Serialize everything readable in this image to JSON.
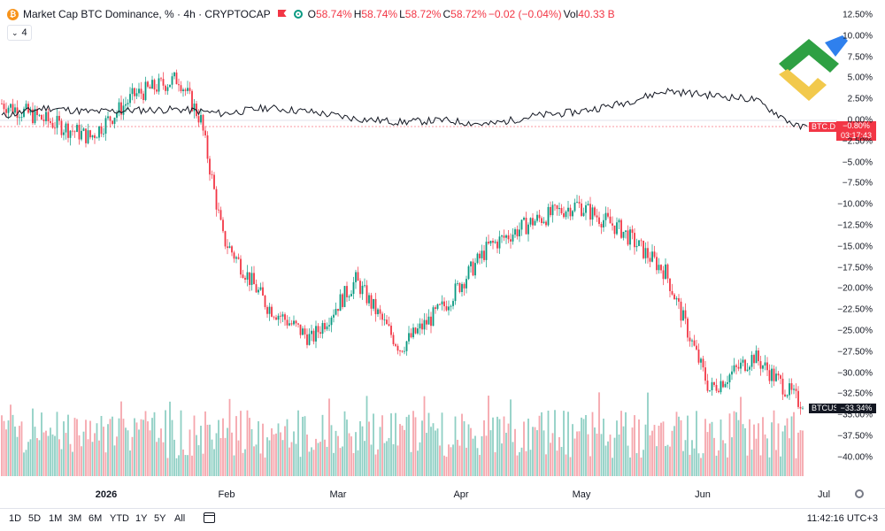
{
  "header": {
    "coin_glyph": "₿",
    "title": "Market Cap BTC Dominance, % · 4h · CRYPTOCAP",
    "ohlc": [
      {
        "label": "O",
        "value": "58.74%"
      },
      {
        "label": "H",
        "value": "58.74%"
      },
      {
        "label": "L",
        "value": "58.72%"
      },
      {
        "label": "C",
        "value": "58.72%"
      }
    ],
    "change": "−0.02 (−0.04%)",
    "vol_label": "Vol",
    "vol_value": "40.33 B"
  },
  "indicator": {
    "label": "4",
    "icon": "chevron-down-icon"
  },
  "price_axis": [
    "12.50%",
    "10.00%",
    "7.50%",
    "5.00%",
    "2.50%",
    "0.00%",
    "−2.50%",
    "−5.00%",
    "−7.50%",
    "−10.00%",
    "−12.50%",
    "−15.00%",
    "−17.50%",
    "−20.00%",
    "−22.50%",
    "−25.00%",
    "−27.50%",
    "−30.00%",
    "−32.50%",
    "−35.00%",
    "−37.50%",
    "−40.00%"
  ],
  "series_tags": {
    "btcd": {
      "name": "BTC.D",
      "value": "−0.80%",
      "countdown": "03:17:43"
    },
    "btcusd": {
      "name": "BTCUSD",
      "value": "−33.34%"
    }
  },
  "time_axis": [
    {
      "label": "2026",
      "bold": true
    },
    {
      "label": "Feb",
      "bold": false
    },
    {
      "label": "Mar",
      "bold": false
    },
    {
      "label": "Apr",
      "bold": false
    },
    {
      "label": "May",
      "bold": false
    },
    {
      "label": "Jun",
      "bold": false
    },
    {
      "label": "Jul",
      "bold": false
    }
  ],
  "timeframes": [
    "1D",
    "5D",
    "1M",
    "3M",
    "6M",
    "YTD",
    "1Y",
    "5Y",
    "All"
  ],
  "clock": "11:42:16",
  "timezone": "UTC+3",
  "colors": {
    "up": "#089981",
    "down": "#f23645",
    "line": "#131722"
  },
  "chart_data": [
    {
      "type": "line",
      "series_name": "BTC.D",
      "unit": "%",
      "x": [
        0,
        10,
        20,
        30,
        40,
        50,
        60,
        70,
        80,
        90,
        100,
        110,
        120,
        130,
        140,
        150,
        160,
        170,
        180
      ],
      "values": [
        0.5,
        1.5,
        1.0,
        1.2,
        1.3,
        0.8,
        1.5,
        1.0,
        0.2,
        -0.2,
        0.0,
        -0.5,
        0.5,
        1.0,
        2.0,
        3.5,
        3.0,
        2.5,
        -0.8
      ]
    },
    {
      "type": "candlestick",
      "series_name": "BTCUSD",
      "unit": "%",
      "x": [
        0,
        10,
        20,
        30,
        40,
        45,
        50,
        60,
        70,
        80,
        90,
        100,
        110,
        120,
        130,
        140,
        150,
        160,
        170,
        180
      ],
      "values": [
        2.0,
        0.0,
        -2.0,
        3.0,
        5.0,
        0.0,
        -14.0,
        -22.0,
        -26.0,
        -19.0,
        -27.0,
        -22.0,
        -15.0,
        -12.0,
        -10.0,
        -13.0,
        -18.0,
        -32.0,
        -28.0,
        -33.34
      ],
      "yrange": [
        -40,
        12.5
      ]
    }
  ]
}
